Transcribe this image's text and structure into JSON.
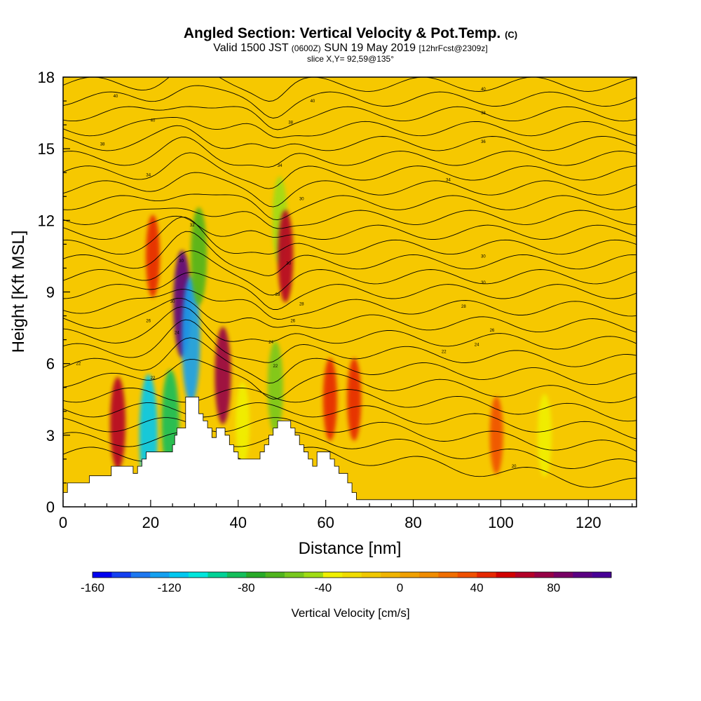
{
  "title": {
    "main": "Angled Section: Vertical Velocity & Pot.Temp.",
    "main_tag": "(C)",
    "valid_prefix": "Valid 1500 JST",
    "valid_utc": "(0600Z)",
    "valid_date": "SUN 19 May 2019",
    "forecast_tag": "[12hrFcst@2309z]",
    "slice": "slice X,Y= 92,59@135°"
  },
  "chart_data": {
    "type": "heatmap",
    "xlabel": "Distance [nm]",
    "ylabel": "Height [Kft MSL]",
    "xlim": [
      0,
      131
    ],
    "ylim": [
      0,
      18
    ],
    "x_ticks": [
      0,
      20,
      40,
      60,
      80,
      100,
      120
    ],
    "y_ticks": [
      0,
      3,
      6,
      9,
      12,
      15,
      18
    ],
    "grid": false,
    "colorbar": {
      "label": "Vertical Velocity [cm/s]",
      "placement": "bottom",
      "range": [
        -160,
        110
      ],
      "step": 10,
      "ticks": [
        -160,
        -120,
        -80,
        -40,
        0,
        40,
        80
      ],
      "colors": [
        "#0000f0",
        "#1440f0",
        "#1e78f0",
        "#14a0f0",
        "#00c8f0",
        "#00e6dc",
        "#00d296",
        "#14be5a",
        "#28aa28",
        "#50b41e",
        "#78c81e",
        "#a0dc14",
        "#f0f000",
        "#f0dc00",
        "#f0c800",
        "#f0b400",
        "#f0a000",
        "#f08c00",
        "#f06e00",
        "#f05000",
        "#e62800",
        "#d20000",
        "#b40028",
        "#960046",
        "#780064",
        "#5a0082",
        "#480096"
      ]
    },
    "terrain_profile": {
      "x": [
        0,
        1,
        1,
        6,
        6,
        11,
        11,
        16,
        16,
        17,
        17,
        18,
        18,
        19,
        19,
        20,
        20,
        21,
        21,
        25,
        25,
        25.5,
        25.5,
        26,
        26,
        28,
        28,
        31,
        31,
        32,
        32,
        33,
        33,
        34,
        34,
        35,
        35,
        37,
        37,
        38,
        38,
        39,
        39,
        40,
        40,
        42,
        42,
        45,
        45,
        46,
        46,
        47,
        47,
        48,
        48,
        49,
        49,
        50,
        50,
        52,
        52,
        53,
        53,
        54,
        54,
        55,
        55,
        56,
        56,
        57,
        57,
        58,
        58,
        61,
        61,
        62,
        62,
        63,
        63,
        65,
        65,
        66,
        66,
        67,
        67,
        70,
        70,
        131
      ],
      "height_kft": [
        0.6,
        0.6,
        1.0,
        1.0,
        1.3,
        1.3,
        1.7,
        1.7,
        1.4,
        1.4,
        1.7,
        1.7,
        2.0,
        2.0,
        2.3,
        2.3,
        2.3,
        2.3,
        2.3,
        2.3,
        2.6,
        2.6,
        3.0,
        3.0,
        3.3,
        3.3,
        4.6,
        4.6,
        3.9,
        3.9,
        3.6,
        3.6,
        3.3,
        3.3,
        2.9,
        2.9,
        3.3,
        3.3,
        3.0,
        3.0,
        2.6,
        2.6,
        2.3,
        2.3,
        2.0,
        2.0,
        2.0,
        2.0,
        2.3,
        2.3,
        2.6,
        2.6,
        3.0,
        3.0,
        3.3,
        3.3,
        3.6,
        3.6,
        3.6,
        3.6,
        3.3,
        3.3,
        3.0,
        3.0,
        2.6,
        2.6,
        2.3,
        2.3,
        2.0,
        2.0,
        1.7,
        1.7,
        2.3,
        2.3,
        2.0,
        2.0,
        1.7,
        1.7,
        1.4,
        1.4,
        1.0,
        1.0,
        0.6,
        0.6,
        0.3,
        0.3,
        0.3,
        0.3
      ]
    },
    "vertical_velocity_features": [
      {
        "x": 12.5,
        "z": 3.5,
        "w": 60
      },
      {
        "x": 19.5,
        "z": 3.0,
        "w": -120
      },
      {
        "x": 20.5,
        "z": 10.5,
        "w": 40
      },
      {
        "x": 24.5,
        "z": 3.5,
        "w": -90
      },
      {
        "x": 27.2,
        "z": 8.5,
        "w": 90
      },
      {
        "x": 29.2,
        "z": 7.0,
        "w": -130
      },
      {
        "x": 31.0,
        "z": 10.5,
        "w": -70
      },
      {
        "x": 36.5,
        "z": 5.5,
        "w": 70
      },
      {
        "x": 41.0,
        "z": 3.5,
        "w": -40
      },
      {
        "x": 48.5,
        "z": 5.0,
        "w": -60
      },
      {
        "x": 49.5,
        "z": 12.0,
        "w": -50
      },
      {
        "x": 50.8,
        "z": 10.5,
        "w": 60
      },
      {
        "x": 61.0,
        "z": 4.5,
        "w": 40
      },
      {
        "x": 66.5,
        "z": 4.5,
        "w": 40
      },
      {
        "x": 99.0,
        "z": 3.0,
        "w": 30
      },
      {
        "x": 110.0,
        "z": 3.0,
        "w": -40
      }
    ],
    "potential_temperature_labels": [
      {
        "text": "40",
        "x": 12,
        "z": 17.2
      },
      {
        "text": "40",
        "x": 20.5,
        "z": 16.2
      },
      {
        "text": "40",
        "x": 57,
        "z": 17.0
      },
      {
        "text": "40",
        "x": 96,
        "z": 17.5
      },
      {
        "text": "38",
        "x": 9,
        "z": 15.2
      },
      {
        "text": "38",
        "x": 52,
        "z": 16.1
      },
      {
        "text": "38",
        "x": 96,
        "z": 16.5
      },
      {
        "text": "36",
        "x": 96,
        "z": 15.3
      },
      {
        "text": "34",
        "x": 19.5,
        "z": 13.9
      },
      {
        "text": "34",
        "x": 49.5,
        "z": 14.3
      },
      {
        "text": "34",
        "x": 88,
        "z": 13.7
      },
      {
        "text": "30",
        "x": 54.5,
        "z": 12.9
      },
      {
        "text": "32",
        "x": 29.5,
        "z": 11.8
      },
      {
        "text": "30",
        "x": 27,
        "z": 10.3
      },
      {
        "text": "30",
        "x": 51.5,
        "z": 10.2
      },
      {
        "text": "30",
        "x": 96,
        "z": 10.5
      },
      {
        "text": "30",
        "x": 96,
        "z": 9.4
      },
      {
        "text": "30",
        "x": 25,
        "z": 8.6
      },
      {
        "text": "28",
        "x": 49,
        "z": 8.9
      },
      {
        "text": "28",
        "x": 54.5,
        "z": 8.5
      },
      {
        "text": "28",
        "x": 91.5,
        "z": 8.4
      },
      {
        "text": "26",
        "x": 19.5,
        "z": 7.8
      },
      {
        "text": "26",
        "x": 52.5,
        "z": 7.8
      },
      {
        "text": "26",
        "x": 98,
        "z": 7.4
      },
      {
        "text": "24",
        "x": 26,
        "z": 7.3
      },
      {
        "text": "24",
        "x": 47.5,
        "z": 6.9
      },
      {
        "text": "24",
        "x": 94.5,
        "z": 6.8
      },
      {
        "text": "22",
        "x": 20.5,
        "z": 5.4
      },
      {
        "text": "22",
        "x": 48.5,
        "z": 5.9
      },
      {
        "text": "22",
        "x": 87,
        "z": 6.5
      },
      {
        "text": "22",
        "x": 3.5,
        "z": 6.0
      },
      {
        "text": "20",
        "x": 103,
        "z": 1.7
      }
    ]
  }
}
